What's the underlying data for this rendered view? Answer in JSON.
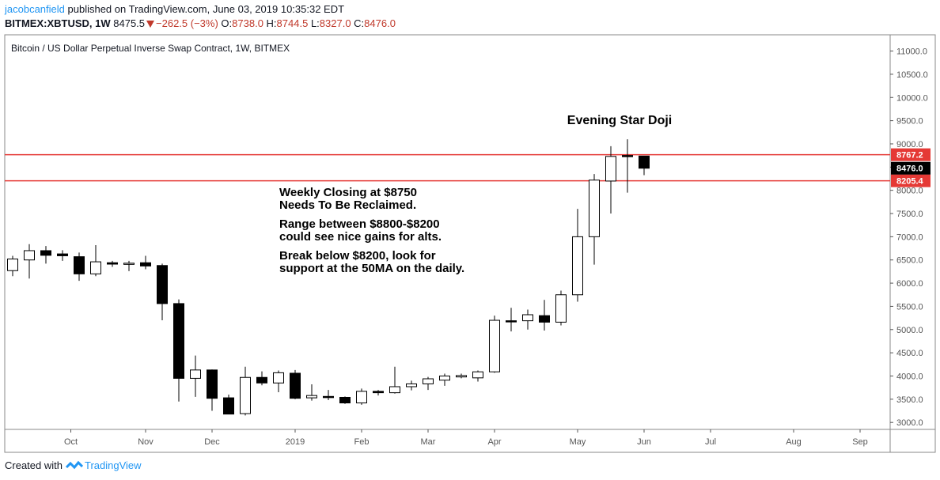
{
  "header": {
    "user": "jacobcanfield",
    "published_text": " published on TradingView.com, June 03, 2019 10:35:32 EDT",
    "symbol": "BITMEX:XBTUSD, 1W",
    "last": "8475.5",
    "change": "−262.5 (−3%)",
    "o_label": "O:",
    "o_value": "8738.0",
    "h_label": "H:",
    "h_value": "8744.5",
    "l_label": "L:",
    "l_value": "8327.0",
    "c_label": "C:",
    "c_value": "8476.0"
  },
  "footer": {
    "created_with": "Created with",
    "brand": "TradingView"
  },
  "colors": {
    "up_fill": "#ffffff",
    "down_fill": "#000000",
    "wick": "#000000",
    "hline": "#e53935",
    "axis": "#555555",
    "badge_dark": "#000000"
  },
  "chart_data": {
    "type": "candlestick",
    "title": "Bitcoin / US Dollar Perpetual Inverse Swap Contract, 1W, BITMEX",
    "ylim": [
      2850,
      11350
    ],
    "y_ticks": [
      "11000.0",
      "10500.0",
      "10000.0",
      "9500.0",
      "9000.0",
      "8500.0",
      "8000.0",
      "7500.0",
      "7000.0",
      "6500.0",
      "6000.0",
      "5500.0",
      "5000.0",
      "4500.0",
      "4000.0",
      "3500.0",
      "3000.0"
    ],
    "x_ticks": [
      {
        "label": "Oct",
        "week": 3.5
      },
      {
        "label": "Nov",
        "week": 8
      },
      {
        "label": "Dec",
        "week": 12
      },
      {
        "label": "2019",
        "week": 17
      },
      {
        "label": "Feb",
        "week": 21
      },
      {
        "label": "Mar",
        "week": 25
      },
      {
        "label": "Apr",
        "week": 29
      },
      {
        "label": "May",
        "week": 34
      },
      {
        "label": "Jun",
        "week": 38
      },
      {
        "label": "Jul",
        "week": 42
      },
      {
        "label": "Aug",
        "week": 47
      },
      {
        "label": "Sep",
        "week": 51
      }
    ],
    "candles": [
      {
        "o": 6270,
        "h": 6590,
        "l": 6150,
        "c": 6520
      },
      {
        "o": 6500,
        "h": 6840,
        "l": 6100,
        "c": 6700
      },
      {
        "o": 6700,
        "h": 6800,
        "l": 6420,
        "c": 6600
      },
      {
        "o": 6630,
        "h": 6710,
        "l": 6480,
        "c": 6590
      },
      {
        "o": 6570,
        "h": 6660,
        "l": 6050,
        "c": 6200
      },
      {
        "o": 6200,
        "h": 6820,
        "l": 6150,
        "c": 6460
      },
      {
        "o": 6440,
        "h": 6480,
        "l": 6350,
        "c": 6410
      },
      {
        "o": 6410,
        "h": 6480,
        "l": 6260,
        "c": 6430
      },
      {
        "o": 6440,
        "h": 6590,
        "l": 6300,
        "c": 6370
      },
      {
        "o": 6380,
        "h": 6420,
        "l": 5200,
        "c": 5560
      },
      {
        "o": 5560,
        "h": 5650,
        "l": 3450,
        "c": 3950
      },
      {
        "o": 3950,
        "h": 4440,
        "l": 3550,
        "c": 4130
      },
      {
        "o": 4130,
        "h": 4140,
        "l": 3250,
        "c": 3520
      },
      {
        "o": 3530,
        "h": 3600,
        "l": 3200,
        "c": 3180
      },
      {
        "o": 3190,
        "h": 4200,
        "l": 3150,
        "c": 3970
      },
      {
        "o": 3970,
        "h": 4100,
        "l": 3800,
        "c": 3850
      },
      {
        "o": 3850,
        "h": 4120,
        "l": 3650,
        "c": 4070
      },
      {
        "o": 4060,
        "h": 4130,
        "l": 3500,
        "c": 3520
      },
      {
        "o": 3530,
        "h": 3820,
        "l": 3470,
        "c": 3580
      },
      {
        "o": 3560,
        "h": 3700,
        "l": 3480,
        "c": 3540
      },
      {
        "o": 3540,
        "h": 3560,
        "l": 3400,
        "c": 3420
      },
      {
        "o": 3420,
        "h": 3730,
        "l": 3380,
        "c": 3670
      },
      {
        "o": 3670,
        "h": 3700,
        "l": 3580,
        "c": 3640
      },
      {
        "o": 3640,
        "h": 4200,
        "l": 3620,
        "c": 3770
      },
      {
        "o": 3770,
        "h": 3900,
        "l": 3690,
        "c": 3830
      },
      {
        "o": 3830,
        "h": 3980,
        "l": 3700,
        "c": 3940
      },
      {
        "o": 3910,
        "h": 4050,
        "l": 3790,
        "c": 4000
      },
      {
        "o": 3980,
        "h": 4050,
        "l": 3950,
        "c": 4010
      },
      {
        "o": 3960,
        "h": 4120,
        "l": 3880,
        "c": 4090
      },
      {
        "o": 4090,
        "h": 5300,
        "l": 4070,
        "c": 5200
      },
      {
        "o": 5190,
        "h": 5470,
        "l": 4960,
        "c": 5170
      },
      {
        "o": 5190,
        "h": 5430,
        "l": 5000,
        "c": 5320
      },
      {
        "o": 5300,
        "h": 5640,
        "l": 4980,
        "c": 5160
      },
      {
        "o": 5160,
        "h": 5840,
        "l": 5090,
        "c": 5750
      },
      {
        "o": 5750,
        "h": 7600,
        "l": 5600,
        "c": 7000
      },
      {
        "o": 7000,
        "h": 8350,
        "l": 6400,
        "c": 8220
      },
      {
        "o": 8200,
        "h": 8950,
        "l": 7500,
        "c": 8730
      },
      {
        "o": 8750,
        "h": 9100,
        "l": 7950,
        "c": 8730
      },
      {
        "o": 8738,
        "h": 8744.5,
        "l": 8327,
        "c": 8476
      }
    ],
    "horizontal_levels": [
      {
        "value": 8767.2,
        "label": "8767.2"
      },
      {
        "value": 8205.4,
        "label": "8205.4"
      }
    ],
    "last_price_label": "8476.0",
    "annotations": {
      "doji": "Evening Star Doji",
      "lines": [
        "Weekly Closing at $8750",
        "Needs To Be Reclaimed.",
        "",
        "Range between $8800-$8200",
        "could see nice gains for alts.",
        "",
        "Break below $8200, look for",
        "support at the 50MA on the daily."
      ]
    }
  }
}
